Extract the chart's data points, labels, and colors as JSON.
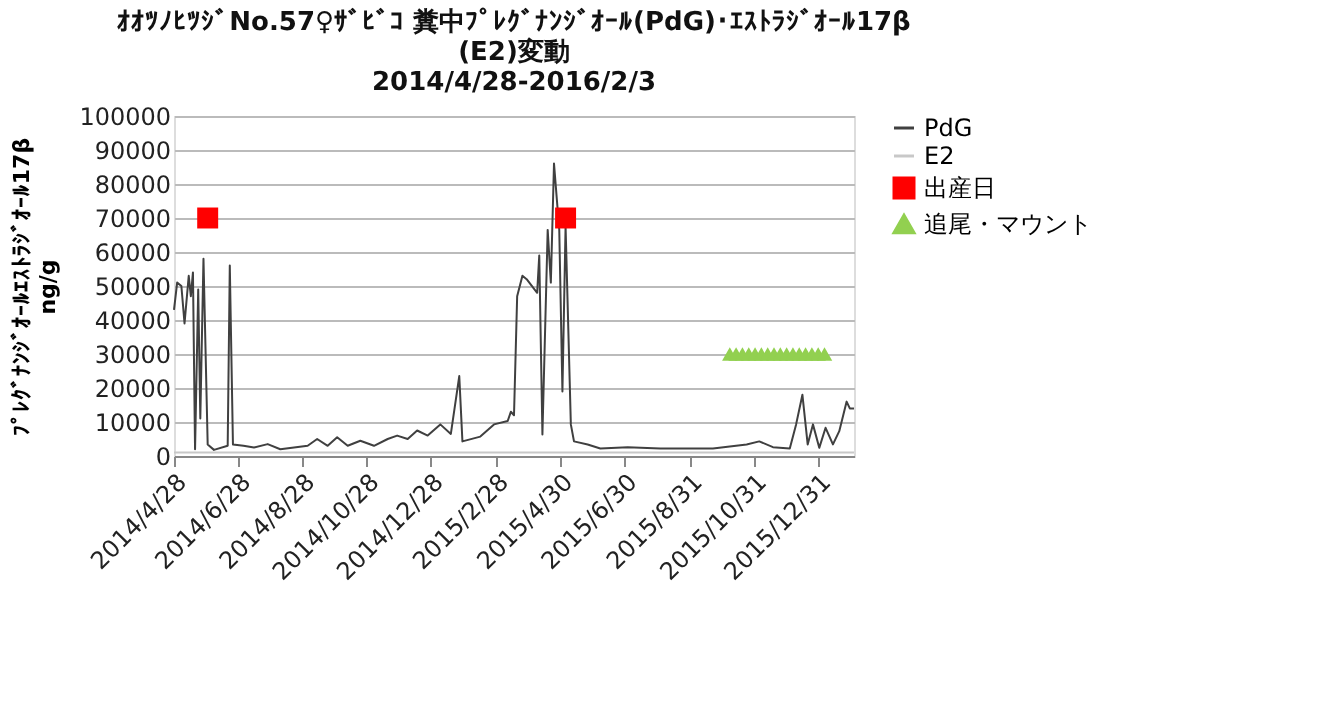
{
  "chart_data": {
    "type": "line",
    "title": "ｵｵﾂﾉﾋﾂｼﾞNo.57♀ｻﾞﾋﾞｺ  糞中ﾌﾟﾚｸﾞﾅﾝｼﾞｵｰﾙ(PdG)･ｴｽﾄﾗｼﾞｵｰﾙ17β\n(E2)変動",
    "subtitle": "2014/4/28-2016/2/3",
    "ylabel": "ﾌﾟﾚｸﾞﾅﾝｼﾞｵｰﾙｴｽﾄﾗｼﾞｵｰﾙ17β\nng/g",
    "xlim": [
      "2014-04-28",
      "2016-02-03"
    ],
    "xticks": [
      {
        "value": "2014-04-28",
        "label": "2014/4/28"
      },
      {
        "value": "2014-06-28",
        "label": "2014/6/28"
      },
      {
        "value": "2014-08-28",
        "label": "2014/8/28"
      },
      {
        "value": "2014-10-28",
        "label": "2014/10/28"
      },
      {
        "value": "2014-12-28",
        "label": "2014/12/28"
      },
      {
        "value": "2015-02-28",
        "label": "2015/2/28"
      },
      {
        "value": "2015-04-30",
        "label": "2015/4/30"
      },
      {
        "value": "2015-06-30",
        "label": "2015/6/30"
      },
      {
        "value": "2015-08-31",
        "label": "2015/8/31"
      },
      {
        "value": "2015-10-31",
        "label": "2015/10/31"
      },
      {
        "value": "2015-12-31",
        "label": "2015/12/31"
      }
    ],
    "ylim": [
      0,
      100000
    ],
    "yticks": [
      0,
      10000,
      20000,
      30000,
      40000,
      50000,
      60000,
      70000,
      80000,
      90000,
      100000
    ],
    "grid": "y",
    "legend": "right",
    "series": [
      {
        "name": "PdG",
        "color": "#404040",
        "x": [
          "2014-04-28",
          "2014-05-01",
          "2014-05-05",
          "2014-05-08",
          "2014-05-12",
          "2014-05-14",
          "2014-05-16",
          "2014-05-18",
          "2014-05-21",
          "2014-05-23",
          "2014-05-26",
          "2014-05-30",
          "2014-06-05",
          "2014-06-18",
          "2014-06-20",
          "2014-06-23",
          "2014-07-03",
          "2014-07-13",
          "2014-07-26",
          "2014-08-07",
          "2014-08-20",
          "2014-09-02",
          "2014-09-11",
          "2014-09-21",
          "2014-09-30",
          "2014-10-10",
          "2014-10-22",
          "2014-11-04",
          "2014-11-17",
          "2014-11-26",
          "2014-12-06",
          "2014-12-15",
          "2014-12-25",
          "2015-01-06",
          "2015-01-16",
          "2015-01-24",
          "2015-01-27",
          "2015-02-13",
          "2015-02-26",
          "2015-03-11",
          "2015-03-14",
          "2015-03-17",
          "2015-03-20",
          "2015-03-25",
          "2015-03-29",
          "2015-04-08",
          "2015-04-10",
          "2015-04-13",
          "2015-04-18",
          "2015-04-21",
          "2015-04-24",
          "2015-04-29",
          "2015-05-02",
          "2015-05-05",
          "2015-05-10",
          "2015-05-13",
          "2015-05-26",
          "2015-06-07",
          "2015-07-03",
          "2015-08-03",
          "2015-09-22",
          "2015-10-24",
          "2015-11-05",
          "2015-11-18",
          "2015-12-04",
          "2015-12-10",
          "2015-12-16",
          "2015-12-21",
          "2015-12-26",
          "2016-01-01",
          "2016-01-07",
          "2016-01-14",
          "2016-01-20",
          "2016-01-27",
          "2016-01-30",
          "2016-02-03"
        ],
        "values": [
          43000,
          51000,
          50000,
          39000,
          53000,
          47000,
          54000,
          2000,
          49000,
          11000,
          58000,
          3400,
          1800,
          3000,
          56000,
          3400,
          3000,
          2500,
          3500,
          2000,
          2500,
          3000,
          5000,
          3000,
          5500,
          3000,
          4500,
          3000,
          5000,
          6000,
          5000,
          7500,
          6000,
          9300,
          6500,
          23500,
          4300,
          5700,
          9300,
          10300,
          13000,
          12000,
          47000,
          53000,
          52000,
          48000,
          59000,
          6300,
          66500,
          51000,
          86000,
          66500,
          19000,
          67500,
          9300,
          4300,
          3400,
          2200,
          2600,
          2200,
          2200,
          3400,
          4300,
          2600,
          2200,
          9300,
          18000,
          3400,
          9300,
          2400,
          8300,
          3400,
          7300,
          16000,
          14000,
          14000
        ]
      },
      {
        "name": "E2",
        "color": "#c8c8c8",
        "x": [
          "2014-04-28",
          "2014-07-28",
          "2014-10-28",
          "2015-01-28",
          "2015-04-28",
          "2015-07-28",
          "2015-10-28",
          "2016-02-03"
        ],
        "values": [
          1000,
          1000,
          1000,
          1000,
          1000,
          1000,
          1000,
          1000
        ]
      },
      {
        "name": "出産日",
        "type": "scatter",
        "marker": "square",
        "color": "#ff0000",
        "x": [
          "2014-05-30",
          "2015-05-05"
        ],
        "values": [
          70000,
          70000
        ]
      },
      {
        "name": "追尾・マウント",
        "type": "scatter",
        "marker": "triangle",
        "color": "#92d050",
        "x": [
          "2015-10-08",
          "2015-10-14",
          "2015-10-20",
          "2015-10-26",
          "2015-11-01",
          "2015-11-07",
          "2015-11-13",
          "2015-11-19",
          "2015-11-25",
          "2015-12-01",
          "2015-12-07",
          "2015-12-13",
          "2015-12-19",
          "2015-12-25",
          "2015-12-31",
          "2016-01-06"
        ],
        "values": [
          30000,
          30000,
          30000,
          30000,
          30000,
          30000,
          30000,
          30000,
          30000,
          30000,
          30000,
          30000,
          30000,
          30000,
          30000,
          30000
        ]
      }
    ]
  }
}
